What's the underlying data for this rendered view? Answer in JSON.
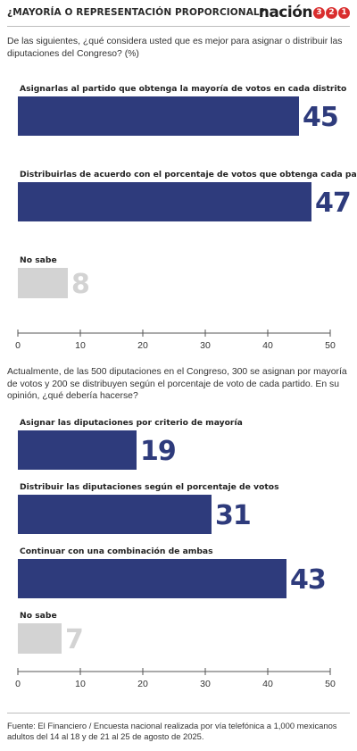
{
  "header": {
    "title": "¿MAYORÍA O REPRESENTACIÓN PROPORCIONAL?",
    "logo_word": "nación",
    "logo_digits": [
      "3",
      "2",
      "1"
    ]
  },
  "colors": {
    "bar": "#2e3b7c",
    "bar_light": "#d3d3d3",
    "value_dark": "#2e3b7c",
    "value_light": "#d3d3d3",
    "axis": "#555555",
    "logo_red": "#d92e2e"
  },
  "questions": {
    "q1": "De las siguientes, ¿qué considera usted que es mejor para asignar o distribuir las diputaciones del Congreso?   (%)",
    "q2": "Actualmente, de las 500 diputaciones en el Congreso, 300 se asignan por mayoría de votos y 200 se distribuyen según el porcentaje de voto de cada partido. En su opinión, ¿qué debería hacerse?"
  },
  "chart_data": [
    {
      "type": "bar",
      "orientation": "horizontal",
      "categories": [
        "Asignarlas al partido que obtenga la mayoría de votos en cada distrito",
        "Distribuirlas de acuerdo con el porcentaje de votos que obtenga cada partido",
        "No sabe"
      ],
      "values": [
        45,
        47,
        8
      ],
      "bar_styles": [
        "dark",
        "dark",
        "light"
      ],
      "xlim": [
        0,
        50
      ],
      "ticks": [
        0,
        10,
        20,
        30,
        40,
        50
      ],
      "grid": false
    },
    {
      "type": "bar",
      "orientation": "horizontal",
      "categories": [
        "Asignar las diputaciones por criterio de mayoría",
        "Distribuir las diputaciones según el porcentaje de votos",
        "Continuar con una combinación de ambas",
        "No sabe"
      ],
      "values": [
        19,
        31,
        43,
        7
      ],
      "bar_styles": [
        "dark",
        "dark",
        "dark",
        "light"
      ],
      "xlim": [
        0,
        50
      ],
      "ticks": [
        0,
        10,
        20,
        30,
        40,
        50
      ],
      "grid": false
    }
  ],
  "source": "Fuente: El Financiero / Encuesta nacional realizada por vía telefónica a 1,000 mexicanos adultos del 14 al 18 y de 21 al 25 de agosto de 2025."
}
